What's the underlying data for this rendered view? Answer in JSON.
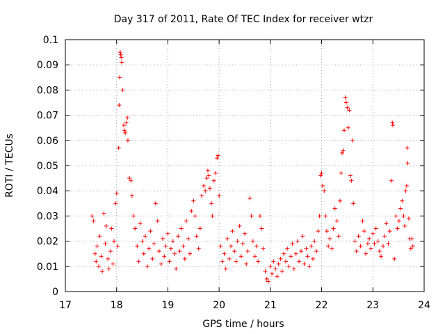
{
  "chart_data": {
    "type": "scatter",
    "title": "Day 317 of 2011, Rate Of TEC Index for receiver wtzr",
    "xlabel": "GPS time / hours",
    "ylabel": "ROTI / TECUs",
    "xlim": [
      17,
      24
    ],
    "ylim": [
      0,
      0.1
    ],
    "xticks": [
      17,
      18,
      19,
      20,
      21,
      22,
      23,
      24
    ],
    "yticks": [
      0,
      0.01,
      0.02,
      0.03,
      0.04,
      0.05,
      0.06,
      0.07,
      0.08,
      0.09,
      0.1
    ],
    "xtick_labels": [
      "17",
      "18",
      "19",
      "20",
      "21",
      "22",
      "23",
      "24"
    ],
    "ytick_labels": [
      "0",
      "0.01",
      "0.02",
      "0.03",
      "0.04",
      "0.05",
      "0.06",
      "0.07",
      "0.08",
      "0.09",
      "0.1"
    ],
    "grid": true,
    "marker": "+",
    "marker_color": "#ff0000",
    "series": [
      {
        "name": "ROTI",
        "points": [
          [
            17.52,
            0.03
          ],
          [
            17.55,
            0.028
          ],
          [
            17.58,
            0.015
          ],
          [
            17.6,
            0.012
          ],
          [
            17.62,
            0.018
          ],
          [
            17.65,
            0.01
          ],
          [
            17.67,
            0.022
          ],
          [
            17.7,
            0.014
          ],
          [
            17.72,
            0.008
          ],
          [
            17.75,
            0.031
          ],
          [
            17.78,
            0.019
          ],
          [
            17.8,
            0.026
          ],
          [
            17.83,
            0.013
          ],
          [
            17.85,
            0.009
          ],
          [
            17.88,
            0.016
          ],
          [
            17.9,
            0.025
          ],
          [
            17.93,
            0.011
          ],
          [
            17.95,
            0.02
          ],
          [
            17.98,
            0.035
          ],
          [
            18.0,
            0.039
          ],
          [
            18.02,
            0.018
          ],
          [
            18.04,
            0.057
          ],
          [
            18.05,
            0.074
          ],
          [
            18.06,
            0.085
          ],
          [
            18.07,
            0.095
          ],
          [
            18.08,
            0.094
          ],
          [
            18.09,
            0.093
          ],
          [
            18.1,
            0.091
          ],
          [
            18.12,
            0.08
          ],
          [
            18.14,
            0.066
          ],
          [
            18.15,
            0.064
          ],
          [
            18.17,
            0.063
          ],
          [
            18.19,
            0.067
          ],
          [
            18.21,
            0.069
          ],
          [
            18.22,
            0.06
          ],
          [
            18.25,
            0.045
          ],
          [
            18.28,
            0.044
          ],
          [
            18.3,
            0.038
          ],
          [
            18.33,
            0.03
          ],
          [
            18.36,
            0.025
          ],
          [
            18.4,
            0.018
          ],
          [
            18.43,
            0.012
          ],
          [
            18.46,
            0.027
          ],
          [
            18.5,
            0.02
          ],
          [
            18.53,
            0.015
          ],
          [
            18.56,
            0.022
          ],
          [
            18.6,
            0.01
          ],
          [
            18.63,
            0.017
          ],
          [
            18.66,
            0.024
          ],
          [
            18.7,
            0.013
          ],
          [
            18.73,
            0.019
          ],
          [
            18.76,
            0.035
          ],
          [
            18.8,
            0.028
          ],
          [
            18.83,
            0.016
          ],
          [
            18.87,
            0.011
          ],
          [
            18.9,
            0.021
          ],
          [
            18.93,
            0.014
          ],
          [
            18.96,
            0.018
          ],
          [
            19.0,
            0.023
          ],
          [
            19.03,
            0.012
          ],
          [
            19.06,
            0.017
          ],
          [
            19.1,
            0.02
          ],
          [
            19.13,
            0.015
          ],
          [
            19.16,
            0.009
          ],
          [
            19.2,
            0.022
          ],
          [
            19.23,
            0.016
          ],
          [
            19.26,
            0.025
          ],
          [
            19.3,
            0.018
          ],
          [
            19.33,
            0.013
          ],
          [
            19.36,
            0.028
          ],
          [
            19.4,
            0.021
          ],
          [
            19.43,
            0.015
          ],
          [
            19.46,
            0.032
          ],
          [
            19.5,
            0.036
          ],
          [
            19.53,
            0.03
          ],
          [
            19.56,
            0.022
          ],
          [
            19.6,
            0.017
          ],
          [
            19.63,
            0.025
          ],
          [
            19.66,
            0.038
          ],
          [
            19.7,
            0.042
          ],
          [
            19.73,
            0.04
          ],
          [
            19.76,
            0.045
          ],
          [
            19.78,
            0.048
          ],
          [
            19.8,
            0.046
          ],
          [
            19.82,
            0.041
          ],
          [
            19.85,
            0.035
          ],
          [
            19.87,
            0.03
          ],
          [
            19.9,
            0.044
          ],
          [
            19.93,
            0.047
          ],
          [
            19.96,
            0.053
          ],
          [
            19.98,
            0.054
          ],
          [
            20.0,
            0.038
          ],
          [
            20.03,
            0.018
          ],
          [
            20.06,
            0.012
          ],
          [
            20.1,
            0.015
          ],
          [
            20.13,
            0.009
          ],
          [
            20.16,
            0.021
          ],
          [
            20.2,
            0.013
          ],
          [
            20.23,
            0.018
          ],
          [
            20.26,
            0.024
          ],
          [
            20.3,
            0.016
          ],
          [
            20.33,
            0.012
          ],
          [
            20.36,
            0.02
          ],
          [
            20.4,
            0.026
          ],
          [
            20.43,
            0.014
          ],
          [
            20.46,
            0.019
          ],
          [
            20.5,
            0.023
          ],
          [
            20.53,
            0.011
          ],
          [
            20.56,
            0.016
          ],
          [
            20.6,
            0.037
          ],
          [
            20.63,
            0.03
          ],
          [
            20.66,
            0.02
          ],
          [
            20.7,
            0.014
          ],
          [
            20.73,
            0.018
          ],
          [
            20.76,
            0.012
          ],
          [
            20.8,
            0.03
          ],
          [
            20.83,
            0.025
          ],
          [
            20.86,
            0.017
          ],
          [
            20.9,
            0.008
          ],
          [
            20.93,
            0.005
          ],
          [
            20.96,
            0.004
          ],
          [
            21.0,
            0.01
          ],
          [
            21.03,
            0.007
          ],
          [
            21.06,
            0.012
          ],
          [
            21.1,
            0.009
          ],
          [
            21.13,
            0.006
          ],
          [
            21.16,
            0.011
          ],
          [
            21.2,
            0.013
          ],
          [
            21.23,
            0.008
          ],
          [
            21.26,
            0.015
          ],
          [
            21.3,
            0.012
          ],
          [
            21.33,
            0.017
          ],
          [
            21.36,
            0.01
          ],
          [
            21.4,
            0.014
          ],
          [
            21.43,
            0.019
          ],
          [
            21.46,
            0.009
          ],
          [
            21.5,
            0.015
          ],
          [
            21.53,
            0.02
          ],
          [
            21.56,
            0.012
          ],
          [
            21.6,
            0.016
          ],
          [
            21.63,
            0.022
          ],
          [
            21.66,
            0.011
          ],
          [
            21.7,
            0.017
          ],
          [
            21.73,
            0.014
          ],
          [
            21.76,
            0.01
          ],
          [
            21.8,
            0.018
          ],
          [
            21.83,
            0.013
          ],
          [
            21.86,
            0.02
          ],
          [
            21.9,
            0.016
          ],
          [
            21.93,
            0.024
          ],
          [
            21.96,
            0.03
          ],
          [
            21.98,
            0.046
          ],
          [
            22.0,
            0.047
          ],
          [
            22.02,
            0.042
          ],
          [
            22.05,
            0.04
          ],
          [
            22.08,
            0.03
          ],
          [
            22.1,
            0.024
          ],
          [
            22.13,
            0.018
          ],
          [
            22.16,
            0.021
          ],
          [
            22.2,
            0.017
          ],
          [
            22.23,
            0.025
          ],
          [
            22.26,
            0.033
          ],
          [
            22.3,
            0.028
          ],
          [
            22.33,
            0.022
          ],
          [
            22.36,
            0.036
          ],
          [
            22.38,
            0.047
          ],
          [
            22.4,
            0.055
          ],
          [
            22.42,
            0.056
          ],
          [
            22.44,
            0.064
          ],
          [
            22.46,
            0.077
          ],
          [
            22.48,
            0.075
          ],
          [
            22.5,
            0.073
          ],
          [
            22.52,
            0.065
          ],
          [
            22.54,
            0.072
          ],
          [
            22.56,
            0.046
          ],
          [
            22.58,
            0.044
          ],
          [
            22.6,
            0.06
          ],
          [
            22.62,
            0.035
          ],
          [
            22.65,
            0.02
          ],
          [
            22.68,
            0.016
          ],
          [
            22.72,
            0.022
          ],
          [
            22.76,
            0.018
          ],
          [
            22.8,
            0.028
          ],
          [
            22.83,
            0.024
          ],
          [
            22.86,
            0.015
          ],
          [
            22.9,
            0.019
          ],
          [
            22.93,
            0.021
          ],
          [
            22.96,
            0.017
          ],
          [
            23.0,
            0.023
          ],
          [
            23.03,
            0.019
          ],
          [
            23.06,
            0.025
          ],
          [
            23.1,
            0.02
          ],
          [
            23.13,
            0.016
          ],
          [
            23.16,
            0.014
          ],
          [
            23.2,
            0.018
          ],
          [
            23.23,
            0.022
          ],
          [
            23.26,
            0.027
          ],
          [
            23.3,
            0.019
          ],
          [
            23.33,
            0.024
          ],
          [
            23.36,
            0.044
          ],
          [
            23.38,
            0.067
          ],
          [
            23.39,
            0.066
          ],
          [
            23.42,
            0.013
          ],
          [
            23.45,
            0.03
          ],
          [
            23.48,
            0.025
          ],
          [
            23.51,
            0.028
          ],
          [
            23.54,
            0.033
          ],
          [
            23.57,
            0.036
          ],
          [
            23.6,
            0.03
          ],
          [
            23.62,
            0.026
          ],
          [
            23.64,
            0.04
          ],
          [
            23.66,
            0.042
          ],
          [
            23.67,
            0.057
          ],
          [
            23.68,
            0.051
          ],
          [
            23.7,
            0.029
          ],
          [
            23.72,
            0.021
          ],
          [
            23.74,
            0.017
          ],
          [
            23.76,
            0.021
          ],
          [
            23.78,
            0.018
          ]
        ]
      }
    ]
  }
}
